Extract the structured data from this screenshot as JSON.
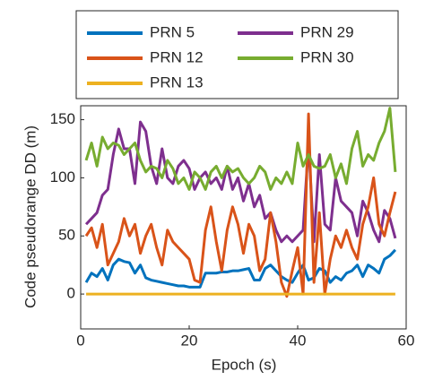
{
  "chart_data": {
    "type": "line",
    "xlabel": "Epoch (s)",
    "ylabel": "Code pseudorange DD (m)",
    "x": [
      1,
      2,
      3,
      4,
      5,
      6,
      7,
      8,
      9,
      10,
      11,
      12,
      13,
      14,
      15,
      16,
      17,
      18,
      19,
      20,
      21,
      22,
      23,
      24,
      25,
      26,
      27,
      28,
      29,
      30,
      31,
      32,
      33,
      34,
      35,
      36,
      37,
      38,
      39,
      40,
      41,
      42,
      43,
      44,
      45,
      46,
      47,
      48,
      49,
      50,
      51,
      52,
      53,
      54,
      55,
      56,
      57,
      58
    ],
    "xlim": [
      0,
      60
    ],
    "xticks": [
      0,
      20,
      40,
      60
    ],
    "ylim": [
      -30,
      162
    ],
    "yticks": [
      0,
      50,
      100,
      150
    ],
    "grid": false,
    "legend": {
      "columns": 2
    },
    "series": [
      {
        "name": "PRN 5",
        "color": "#0072BD",
        "values": [
          10,
          18,
          15,
          22,
          12,
          25,
          30,
          28,
          27,
          18,
          25,
          14,
          12,
          11,
          10,
          9,
          8,
          7,
          7,
          6,
          6,
          6,
          18,
          18,
          18,
          19,
          19,
          20,
          20,
          21,
          22,
          12,
          12,
          22,
          25,
          20,
          15,
          12,
          10,
          18,
          25,
          12,
          14,
          22,
          20,
          10,
          15,
          12,
          18,
          20,
          25,
          15,
          25,
          22,
          18,
          30,
          33,
          38
        ]
      },
      {
        "name": "PRN 29",
        "color": "#7E2F8E",
        "values": [
          60,
          65,
          70,
          85,
          90,
          120,
          142,
          125,
          125,
          95,
          148,
          140,
          110,
          95,
          125,
          100,
          95,
          110,
          115,
          108,
          90,
          100,
          105,
          95,
          100,
          90,
          110,
          90,
          100,
          80,
          95,
          75,
          85,
          65,
          70,
          55,
          45,
          50,
          45,
          50,
          55,
          130,
          45,
          120,
          60,
          55,
          100,
          80,
          75,
          70,
          50,
          80,
          70,
          55,
          45,
          72,
          65,
          48
        ]
      },
      {
        "name": "PRN 12",
        "color": "#D95319",
        "values": [
          50,
          57,
          40,
          60,
          25,
          35,
          45,
          65,
          50,
          60,
          35,
          50,
          60,
          40,
          25,
          55,
          45,
          40,
          35,
          30,
          12,
          10,
          55,
          75,
          45,
          20,
          55,
          75,
          60,
          35,
          60,
          50,
          20,
          30,
          70,
          45,
          10,
          -2,
          20,
          40,
          0,
          155,
          10,
          70,
          0,
          30,
          50,
          40,
          55,
          40,
          30,
          60,
          75,
          100,
          60,
          50,
          70,
          88
        ]
      },
      {
        "name": "PRN 30",
        "color": "#77AC30",
        "values": [
          115,
          130,
          110,
          135,
          125,
          130,
          128,
          120,
          125,
          130,
          115,
          105,
          110,
          108,
          100,
          115,
          108,
          95,
          100,
          90,
          105,
          100,
          90,
          105,
          110,
          100,
          110,
          105,
          108,
          100,
          95,
          100,
          110,
          105,
          90,
          100,
          95,
          105,
          95,
          130,
          110,
          120,
          110,
          108,
          110,
          120,
          100,
          112,
          95,
          125,
          140,
          110,
          120,
          115,
          130,
          140,
          160,
          105
        ]
      },
      {
        "name": "PRN 13",
        "color": "#EDB120",
        "values": [
          0,
          0,
          0,
          0,
          0,
          0,
          0,
          0,
          0,
          0,
          0,
          0,
          0,
          0,
          0,
          0,
          0,
          0,
          0,
          0,
          0,
          0,
          0,
          0,
          0,
          0,
          0,
          0,
          0,
          0,
          0,
          0,
          0,
          0,
          0,
          0,
          0,
          0,
          0,
          0,
          0,
          0,
          0,
          0,
          0,
          0,
          0,
          0,
          0,
          0,
          0,
          0,
          0,
          0,
          0,
          0,
          0,
          0
        ]
      }
    ]
  }
}
